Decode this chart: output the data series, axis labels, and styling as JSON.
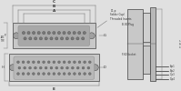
{
  "bg_color": "#e0e0e0",
  "line_color": "#404040",
  "dim_color": "#707070",
  "text_color": "#303030",
  "shell_color": "#c8c8c8",
  "inner_color": "#b0b0b0",
  "pin_color": "#808080",
  "white_bg": "#f0f0f0"
}
